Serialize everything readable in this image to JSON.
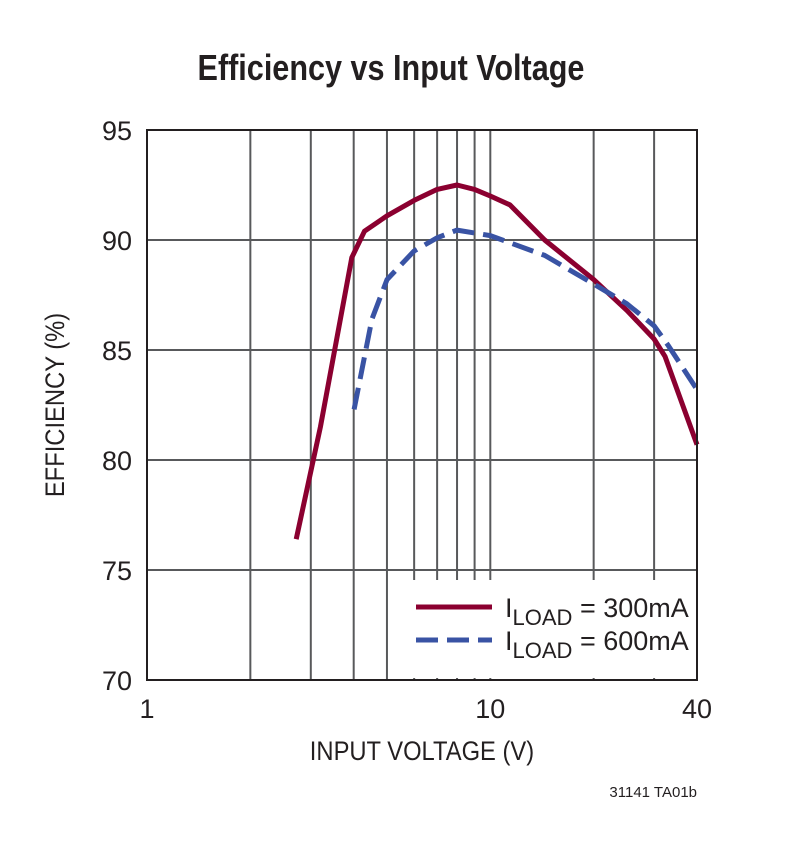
{
  "chart_data": {
    "type": "line",
    "title": "Efficiency vs Input Voltage",
    "xlabel": "INPUT VOLTAGE (V)",
    "ylabel": "EFFICIENCY (%)",
    "xscale": "log",
    "xlim": [
      1,
      40
    ],
    "ylim": [
      70,
      95
    ],
    "xticks": [
      1,
      10,
      40
    ],
    "xtick_labels": [
      "1",
      "10",
      "40"
    ],
    "x_gridlines": [
      2,
      3,
      4,
      5,
      6,
      7,
      8,
      9,
      10,
      20,
      30
    ],
    "yticks": [
      70,
      75,
      80,
      85,
      90,
      95
    ],
    "ytick_labels": [
      "70",
      "75",
      "80",
      "85",
      "90",
      "95"
    ],
    "grid": true,
    "legend_position": "bottom-right",
    "series": [
      {
        "name_main": "I",
        "name_sub": "LOAD",
        "name_rest": " = 300mA",
        "color": "#8b0030",
        "style": "solid",
        "x": [
          2.72,
          3.2,
          3.95,
          4.3,
          5,
          6,
          7,
          8,
          9,
          10,
          11.4,
          14.4,
          20,
          25,
          30,
          32.3,
          40
        ],
        "y": [
          76.4,
          81.5,
          89.2,
          90.4,
          91.1,
          91.8,
          92.3,
          92.5,
          92.3,
          92.0,
          91.6,
          90.0,
          88.2,
          86.8,
          85.5,
          84.7,
          80.7
        ]
      },
      {
        "name_main": "I",
        "name_sub": "LOAD",
        "name_rest": " = 600mA",
        "color": "#3953a4",
        "style": "dashed",
        "x": [
          4.01,
          4.52,
          5,
          6,
          7,
          8,
          10,
          14.4,
          20,
          25,
          30,
          33,
          40
        ],
        "y": [
          82.3,
          86.4,
          88.2,
          89.5,
          90.1,
          90.45,
          90.2,
          89.3,
          88.0,
          87.1,
          86.1,
          85.2,
          83.2
        ]
      }
    ]
  },
  "footnote": "31141 TA01b"
}
